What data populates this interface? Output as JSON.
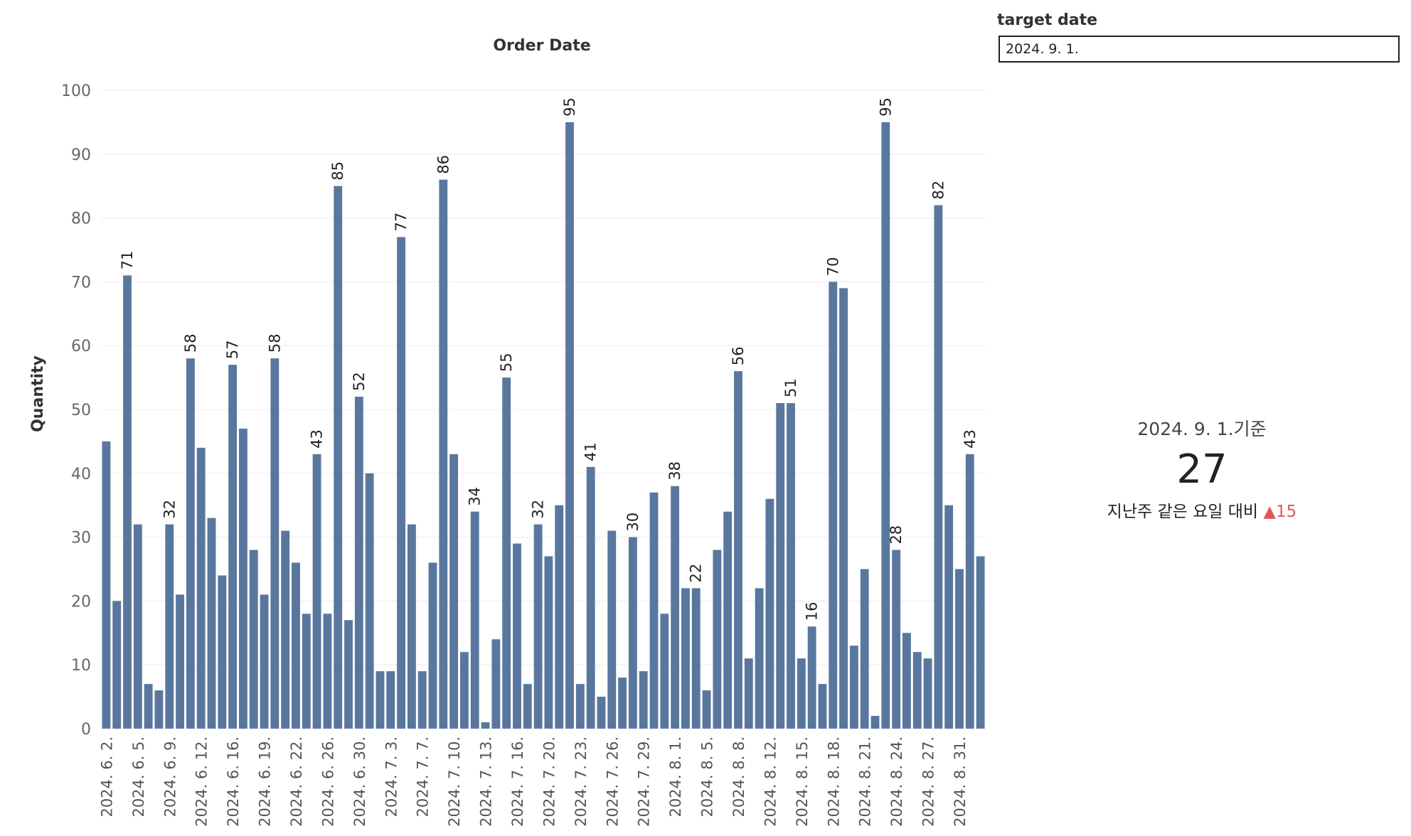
{
  "filter": {
    "label": "target date",
    "value": "2024. 9. 1."
  },
  "kpi": {
    "date_text": "2024. 9. 1.기준",
    "value": "27",
    "compare_text": "지난주 같은 요일 대비",
    "delta_arrow": "▲",
    "delta_value": "15",
    "delta_color": "#e15759"
  },
  "chart_data": {
    "type": "bar",
    "title": "Order Date",
    "xlabel": "",
    "ylabel": "Quantity",
    "ylim": [
      0,
      100
    ],
    "yticks": [
      0,
      10,
      20,
      30,
      40,
      50,
      60,
      70,
      80,
      90,
      100
    ],
    "bar_color": "#59779e",
    "grid": true,
    "values": [
      45,
      20,
      71,
      32,
      7,
      6,
      32,
      21,
      58,
      44,
      33,
      24,
      57,
      47,
      28,
      21,
      58,
      31,
      26,
      18,
      43,
      18,
      85,
      17,
      52,
      40,
      9,
      9,
      77,
      32,
      9,
      26,
      86,
      43,
      12,
      34,
      1,
      14,
      55,
      29,
      7,
      32,
      27,
      35,
      95,
      7,
      41,
      5,
      31,
      8,
      30,
      9,
      37,
      18,
      38,
      22,
      22,
      6,
      28,
      34,
      56,
      11,
      22,
      36,
      51,
      51,
      11,
      16,
      7,
      70,
      69,
      13,
      25,
      2,
      95,
      28,
      15,
      12,
      11,
      82,
      35,
      25,
      43,
      27
    ],
    "data_labels": [
      {
        "index": 2,
        "text": "71"
      },
      {
        "index": 6,
        "text": "32"
      },
      {
        "index": 8,
        "text": "58"
      },
      {
        "index": 12,
        "text": "57"
      },
      {
        "index": 16,
        "text": "58"
      },
      {
        "index": 20,
        "text": "43"
      },
      {
        "index": 22,
        "text": "85"
      },
      {
        "index": 24,
        "text": "52"
      },
      {
        "index": 28,
        "text": "77"
      },
      {
        "index": 32,
        "text": "86"
      },
      {
        "index": 35,
        "text": "34"
      },
      {
        "index": 38,
        "text": "55"
      },
      {
        "index": 41,
        "text": "32"
      },
      {
        "index": 44,
        "text": "95"
      },
      {
        "index": 46,
        "text": "41"
      },
      {
        "index": 50,
        "text": "30"
      },
      {
        "index": 54,
        "text": "38"
      },
      {
        "index": 56,
        "text": "22"
      },
      {
        "index": 60,
        "text": "56"
      },
      {
        "index": 65,
        "text": "51"
      },
      {
        "index": 67,
        "text": "16"
      },
      {
        "index": 69,
        "text": "70"
      },
      {
        "index": 74,
        "text": "95"
      },
      {
        "index": 75,
        "text": "28"
      },
      {
        "index": 79,
        "text": "82"
      },
      {
        "index": 82,
        "text": "43"
      }
    ],
    "x_tick_labels": [
      {
        "index": 0,
        "text": "2024. 6. 2."
      },
      {
        "index": 3,
        "text": "2024. 6. 5."
      },
      {
        "index": 6,
        "text": "2024. 6. 9."
      },
      {
        "index": 9,
        "text": "2024. 6. 12."
      },
      {
        "index": 12,
        "text": "2024. 6. 16."
      },
      {
        "index": 15,
        "text": "2024. 6. 19."
      },
      {
        "index": 18,
        "text": "2024. 6. 22."
      },
      {
        "index": 21,
        "text": "2024. 6. 26."
      },
      {
        "index": 24,
        "text": "2024. 6. 30."
      },
      {
        "index": 27,
        "text": "2024. 7. 3."
      },
      {
        "index": 30,
        "text": "2024. 7. 7."
      },
      {
        "index": 33,
        "text": "2024. 7. 10."
      },
      {
        "index": 36,
        "text": "2024. 7. 13."
      },
      {
        "index": 39,
        "text": "2024. 7. 16."
      },
      {
        "index": 42,
        "text": "2024. 7. 20."
      },
      {
        "index": 45,
        "text": "2024. 7. 23."
      },
      {
        "index": 48,
        "text": "2024. 7. 26."
      },
      {
        "index": 51,
        "text": "2024. 7. 29."
      },
      {
        "index": 54,
        "text": "2024. 8. 1."
      },
      {
        "index": 57,
        "text": "2024. 8. 5."
      },
      {
        "index": 60,
        "text": "2024. 8. 8."
      },
      {
        "index": 63,
        "text": "2024. 8. 12."
      },
      {
        "index": 66,
        "text": "2024. 8. 15."
      },
      {
        "index": 69,
        "text": "2024. 8. 18."
      },
      {
        "index": 72,
        "text": "2024. 8. 21."
      },
      {
        "index": 75,
        "text": "2024. 8. 24."
      },
      {
        "index": 78,
        "text": "2024. 8. 27."
      },
      {
        "index": 81,
        "text": "2024. 8. 31."
      }
    ]
  }
}
